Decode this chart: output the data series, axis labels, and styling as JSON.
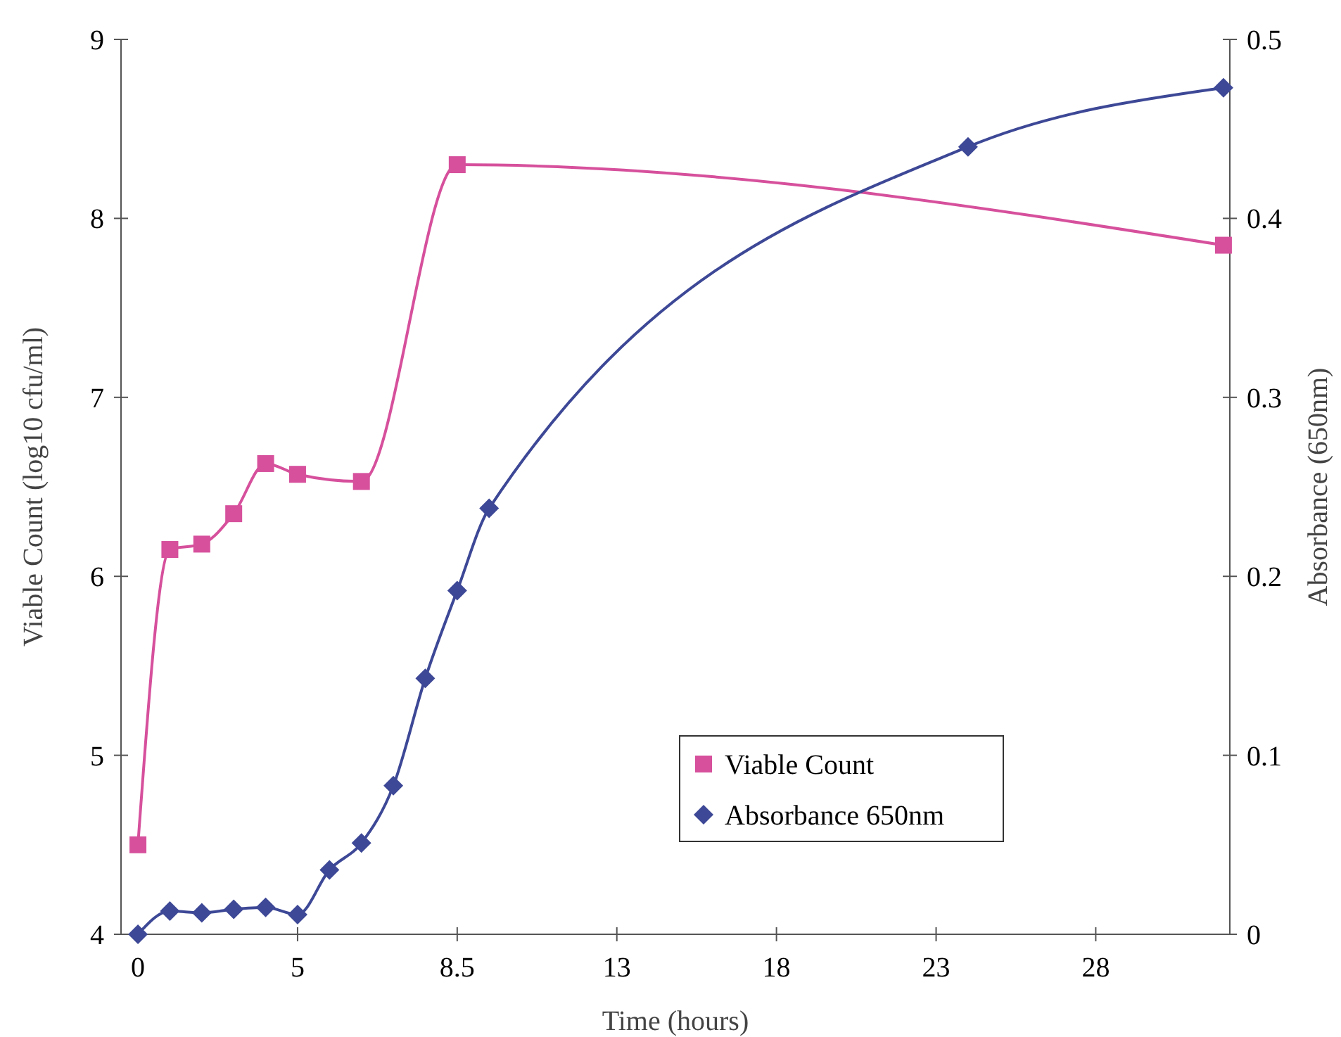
{
  "chart_data": {
    "type": "line",
    "xlabel": "Time (hours)",
    "ylabel": "Viable Count (log10 cfu/ml)",
    "y2label": "Absorbance (650nm)",
    "categories": [
      "0",
      null,
      null,
      null,
      null,
      "5",
      null,
      null,
      null,
      null,
      "8.5",
      null,
      null,
      null,
      null,
      "13",
      null,
      null,
      null,
      null,
      "18",
      null,
      null,
      null,
      null,
      "23",
      null,
      null,
      null,
      null,
      "28",
      null,
      null,
      null,
      null
    ],
    "ylim": [
      4,
      9
    ],
    "yticks": [
      4,
      5,
      6,
      7,
      8,
      9
    ],
    "y2lim": [
      0,
      0.5
    ],
    "y2ticks": [
      0,
      0.1,
      0.2,
      0.3,
      0.4,
      0.5
    ],
    "legend": "bottom",
    "series": [
      {
        "name": "Viable Count",
        "color": "#d6509c",
        "marker": "square",
        "values": [
          4.5,
          6.15,
          6.18,
          6.35,
          6.63,
          6.57,
          null,
          6.53,
          null,
          null,
          8.3,
          null,
          null,
          null,
          null,
          null,
          null,
          null,
          null,
          null,
          null,
          null,
          null,
          null,
          null,
          null,
          null,
          null,
          null,
          null,
          null,
          null,
          null,
          null,
          7.85
        ]
      },
      {
        "name": "Absorbance 650nm",
        "color": "#3d4896",
        "marker": "diamond",
        "axis": "y2",
        "values": [
          0,
          0.013,
          0.012,
          0.014,
          0.015,
          0.011,
          0.036,
          0.051,
          0.083,
          0.143,
          0.192,
          0.238,
          null,
          null,
          null,
          null,
          null,
          null,
          null,
          null,
          null,
          null,
          null,
          null,
          null,
          null,
          0.44,
          null,
          null,
          null,
          null,
          null,
          null,
          null,
          0.473
        ]
      }
    ]
  }
}
